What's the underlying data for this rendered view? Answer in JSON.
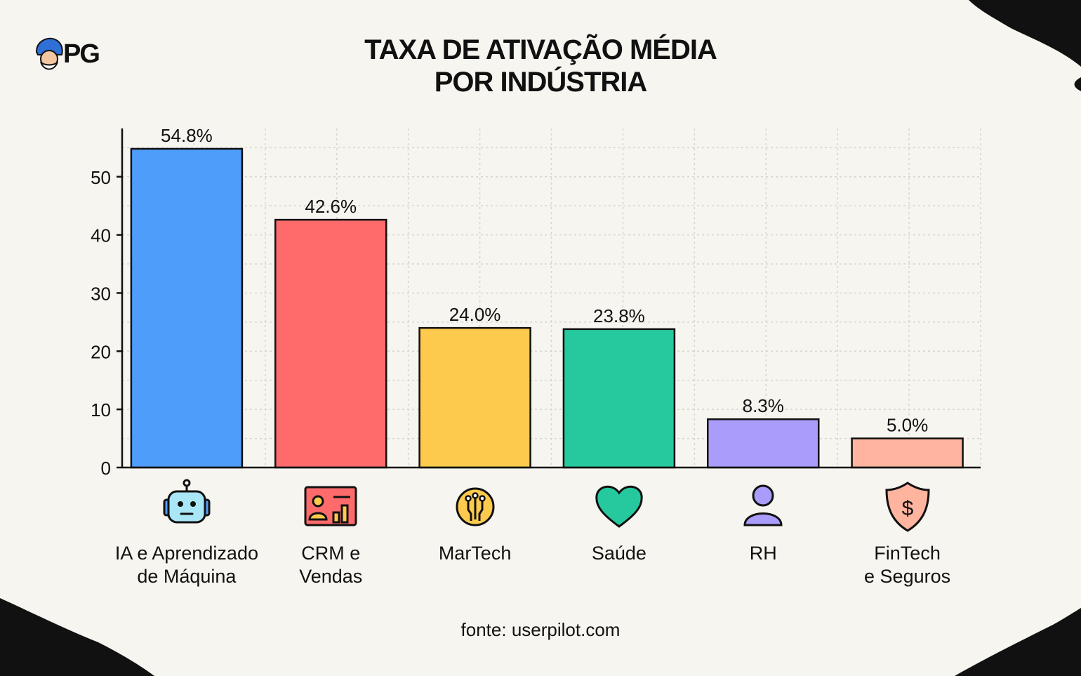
{
  "brand": {
    "logo_text": "PG"
  },
  "title_lines": [
    "TAXA DE ATIVAÇÃO MÉDIA",
    "POR INDÚSTRIA"
  ],
  "source": {
    "prefix": "fonte:",
    "site": "userpilot.com"
  },
  "colors": {
    "background": "#f7f5ef",
    "bars": [
      "#4f9dfb",
      "#ff6b6b",
      "#fdca4d",
      "#26c99e",
      "#a99cfb",
      "#feb49e"
    ],
    "outline": "#111111"
  },
  "icons": [
    "robot-icon",
    "crm-chart-icon",
    "chip-circuit-icon",
    "heart-icon",
    "person-icon",
    "shield-dollar-icon"
  ],
  "chart_data": {
    "type": "bar",
    "title": "TAXA DE ATIVAÇÃO MÉDIA POR INDÚSTRIA",
    "categories": [
      [
        "IA e Aprendizado",
        "de Máquina"
      ],
      [
        "CRM e",
        "Vendas"
      ],
      [
        "MarTech"
      ],
      [
        "Saúde"
      ],
      [
        "RH"
      ],
      [
        "FinTech",
        "e Seguros"
      ]
    ],
    "values": [
      54.8,
      42.6,
      24.0,
      23.8,
      8.3,
      5.0
    ],
    "data_labels": [
      "54.8%",
      "42.6%",
      "24.0%",
      "23.8%",
      "8.3%",
      "5.0%"
    ],
    "yticks": [
      0,
      10,
      20,
      30,
      40,
      50
    ],
    "ylim": [
      0,
      58.3
    ],
    "grid": true,
    "xlabel": "",
    "ylabel": ""
  }
}
